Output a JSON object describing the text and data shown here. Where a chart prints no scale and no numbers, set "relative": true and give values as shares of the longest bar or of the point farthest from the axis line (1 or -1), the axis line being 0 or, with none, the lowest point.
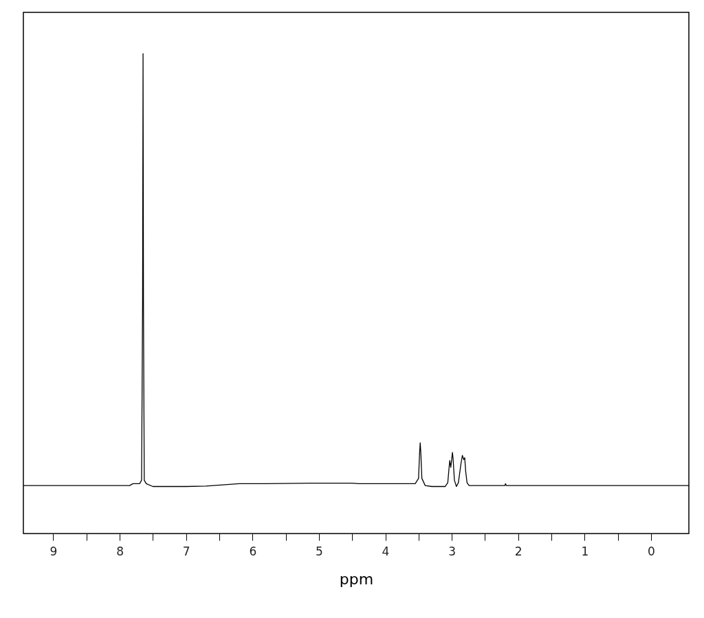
{
  "chart_data": {
    "type": "line",
    "relative": true,
    "xlabel": "ppm",
    "xlim": [
      9.45,
      -0.57
    ],
    "xticks": [
      9,
      {
        "value": 8.5,
        "label": null
      },
      8,
      {
        "value": 7.5,
        "label": null
      },
      7,
      {
        "value": 6.5,
        "label": null
      },
      6,
      {
        "value": 5.5,
        "label": null
      },
      5,
      {
        "value": 4.5,
        "label": null
      },
      4,
      {
        "value": 3.5,
        "label": null
      },
      3,
      {
        "value": 2.5,
        "label": null
      },
      2,
      {
        "value": 1.5,
        "label": null
      },
      1,
      {
        "value": 0.5,
        "label": null
      },
      0
    ],
    "grid": false,
    "marker": "none",
    "line_style": "solid",
    "series": [
      {
        "color": "#000000",
        "x": [
          9.45,
          7.85,
          7.8,
          7.7,
          7.67,
          7.655,
          7.648,
          7.642,
          7.63,
          7.6,
          7.5,
          7.0,
          6.7,
          6.2,
          5.8,
          5.1,
          4.5,
          4.4,
          4.0,
          3.55,
          3.5,
          3.485,
          3.475,
          3.465,
          3.45,
          3.4,
          3.3,
          3.1,
          3.06,
          3.04,
          3.03,
          3.015,
          3.0,
          2.99,
          2.98,
          2.96,
          2.93,
          2.9,
          2.86,
          2.84,
          2.82,
          2.805,
          2.79,
          2.77,
          2.74,
          2.2,
          2.19,
          2.18,
          -0.57
        ],
        "values": [
          0.1,
          0.1,
          0.104,
          0.104,
          0.111,
          0.486,
          1.0,
          0.486,
          0.111,
          0.104,
          0.098,
          0.098,
          0.099,
          0.104,
          0.104,
          0.105,
          0.105,
          0.104,
          0.104,
          0.104,
          0.115,
          0.166,
          0.189,
          0.166,
          0.115,
          0.1,
          0.098,
          0.098,
          0.106,
          0.138,
          0.152,
          0.138,
          0.156,
          0.169,
          0.156,
          0.111,
          0.098,
          0.106,
          0.147,
          0.163,
          0.154,
          0.158,
          0.129,
          0.106,
          0.1,
          0.1,
          0.104,
          0.1,
          0.1
        ]
      }
    ]
  }
}
